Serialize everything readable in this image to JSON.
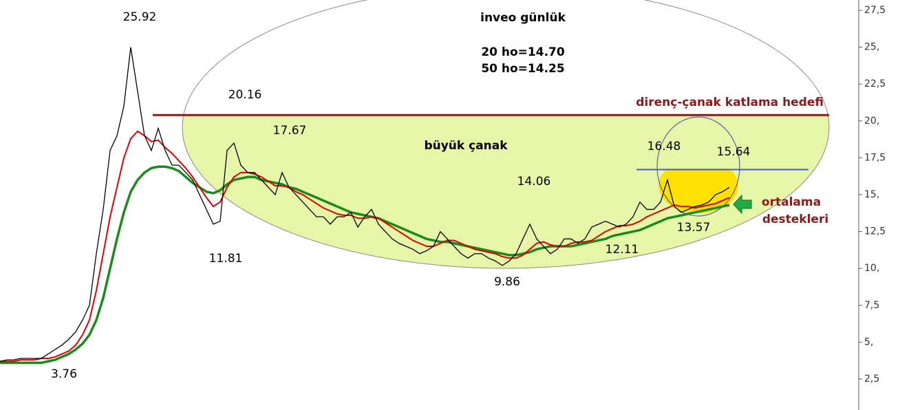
{
  "chart_data": {
    "type": "line",
    "title": "inveo günlük",
    "series": [
      {
        "color": "#000000",
        "values": [
          3.7,
          3.8,
          3.8,
          3.9,
          3.9,
          3.9,
          3.9,
          4.2,
          4.5,
          4.8,
          5.2,
          5.7,
          6.5,
          7.5,
          11,
          14,
          18,
          19,
          21,
          25,
          22,
          19,
          18,
          19.5,
          18,
          17,
          17,
          16.5,
          16,
          15,
          14,
          13,
          13.2,
          18,
          18.5,
          17,
          16.5,
          16.5,
          16,
          15.5,
          15,
          16.5,
          15.5,
          15,
          14.5,
          14,
          13.5,
          13.5,
          13,
          13.5,
          13.5,
          13.8,
          12.8,
          13.5,
          14,
          13,
          12.5,
          12,
          11.7,
          11.5,
          11.3,
          11,
          11.2,
          11.5,
          12.5,
          12,
          11.5,
          11,
          10.7,
          11,
          11,
          10.7,
          10.5,
          10.2,
          10.5,
          11,
          12,
          13,
          12,
          11.5,
          11,
          11.3,
          12,
          12,
          11.7,
          12,
          12.8,
          13,
          13.2,
          13,
          12.8,
          13,
          13.5,
          14.5,
          14,
          14,
          14.5,
          16,
          14.2,
          13.8,
          14,
          14.2,
          14.3,
          14.5,
          15,
          15.2,
          15.5
        ]
      },
      {
        "name": "20 ho=14.70",
        "color": "#e00000",
        "values": [
          3.7,
          3.7,
          3.7,
          3.8,
          3.8,
          3.8,
          3.9,
          3.9,
          4.0,
          4.2,
          4.4,
          4.8,
          5.5,
          6.5,
          8.5,
          11,
          13.5,
          15.5,
          17.5,
          18.8,
          19.3,
          19.0,
          18.6,
          18.7,
          18.2,
          17.8,
          17.3,
          16.8,
          16.2,
          15.5,
          14.8,
          14.2,
          14.5,
          15.5,
          16.2,
          16.5,
          16.5,
          16.4,
          16.2,
          15.9,
          15.6,
          15.6,
          15.5,
          15.2,
          15.0,
          14.7,
          14.4,
          14.1,
          13.9,
          13.7,
          13.6,
          13.6,
          13.4,
          13.4,
          13.5,
          13.4,
          13.1,
          12.8,
          12.5,
          12.2,
          11.9,
          11.7,
          11.5,
          11.5,
          11.7,
          11.9,
          11.9,
          11.7,
          11.5,
          11.3,
          11.2,
          11.1,
          11.0,
          10.8,
          10.7,
          10.7,
          10.9,
          11.3,
          11.7,
          11.8,
          11.6,
          11.5,
          11.5,
          11.7,
          11.8,
          11.8,
          11.9,
          12.2,
          12.5,
          12.7,
          12.9,
          12.9,
          13.0,
          13.2,
          13.5,
          13.7,
          13.9,
          14.1,
          14.3,
          14.2,
          14.2,
          14.1,
          14.2,
          14.3,
          14.4,
          14.6,
          14.8
        ]
      },
      {
        "name": "50 ho=14.25",
        "color": "#1a8a1a",
        "values": [
          3.6,
          3.6,
          3.6,
          3.6,
          3.6,
          3.6,
          3.6,
          3.7,
          3.8,
          4.0,
          4.2,
          4.5,
          4.9,
          5.5,
          6.5,
          8.0,
          10.0,
          12.0,
          13.8,
          15.2,
          16.0,
          16.5,
          16.8,
          16.9,
          16.9,
          16.8,
          16.6,
          16.2,
          15.8,
          15.5,
          15.2,
          15.1,
          15.3,
          15.7,
          16.0,
          16.1,
          16.2,
          16.2,
          16.0,
          15.9,
          15.8,
          15.7,
          15.5,
          15.4,
          15.2,
          15.0,
          14.8,
          14.6,
          14.4,
          14.2,
          14.0,
          13.8,
          13.7,
          13.6,
          13.5,
          13.4,
          13.2,
          13.0,
          12.8,
          12.6,
          12.4,
          12.2,
          12.0,
          11.9,
          11.8,
          11.8,
          11.7,
          11.6,
          11.5,
          11.4,
          11.3,
          11.2,
          11.1,
          11.0,
          10.9,
          10.9,
          11.0,
          11.1,
          11.3,
          11.4,
          11.5,
          11.5,
          11.5,
          11.5,
          11.6,
          11.7,
          11.8,
          11.9,
          12.0,
          12.2,
          12.3,
          12.4,
          12.5,
          12.6,
          12.8,
          13.0,
          13.2,
          13.4,
          13.5,
          13.6,
          13.7,
          13.8,
          13.9,
          14.0,
          14.1,
          14.2,
          14.3
        ]
      }
    ],
    "ylim": [
      0.4,
      28.2
    ],
    "yticks": [
      {
        "value": 2.5,
        "label": "2,5"
      },
      {
        "value": 5,
        "label": "5,"
      },
      {
        "value": 7.5,
        "label": "7,5"
      },
      {
        "value": 10,
        "label": "10,"
      },
      {
        "value": 12.5,
        "label": "12,5"
      },
      {
        "value": 15,
        "label": "15,"
      },
      {
        "value": 17.5,
        "label": "17,5"
      },
      {
        "value": 20,
        "label": "20,"
      },
      {
        "value": 22.5,
        "label": "22,5"
      },
      {
        "value": 25,
        "label": "25,"
      },
      {
        "value": 27.5,
        "label": "27,5"
      }
    ],
    "hlines": [
      {
        "value": 20.4,
        "color": "#8b1a1a",
        "label": "direnç-çanak katlama hedefi"
      },
      {
        "value": 16.7,
        "color": "#4a5bc4"
      }
    ],
    "annotations": [
      "25.92",
      "20.16",
      "17.67",
      "11.81",
      "3.76",
      "9.86",
      "14.06",
      "12.11",
      "16.48",
      "15.64",
      "13.57",
      "büyük çanak",
      "ortalama",
      "destekleri"
    ]
  }
}
